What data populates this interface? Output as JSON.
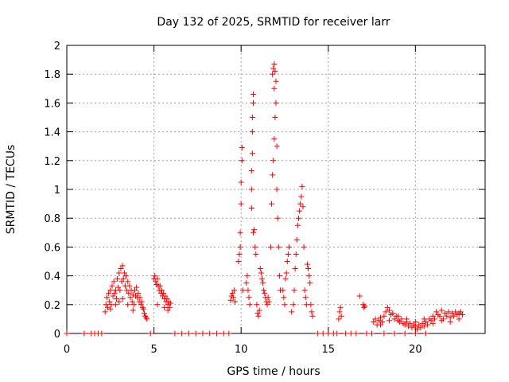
{
  "chart_data": {
    "type": "scatter",
    "title": "Day 132 of 2025, SRMTID for receiver larr",
    "xlabel": "GPS time / hours",
    "ylabel": "SRMTID / TECUs",
    "xlim": [
      0,
      24
    ],
    "ylim": [
      0,
      2
    ],
    "xticks": [
      0,
      5,
      10,
      15,
      20
    ],
    "yticks": [
      0,
      0.2,
      0.4,
      0.6,
      0.8,
      1,
      1.2,
      1.4,
      1.6,
      1.8,
      2
    ],
    "ytick_labels": [
      "0",
      "0.2",
      "0.4",
      "0.6",
      "0.8",
      "1",
      "1.2",
      "1.4",
      "1.6",
      "1.8",
      "2"
    ],
    "grid": true,
    "marker": "+",
    "color": "#ff0000",
    "series": [
      {
        "name": "SRMTID",
        "points": [
          [
            0.0,
            0
          ],
          [
            1.0,
            0
          ],
          [
            1.4,
            0
          ],
          [
            1.6,
            0
          ],
          [
            1.8,
            0
          ],
          [
            2.0,
            0
          ],
          [
            2.2,
            0.15
          ],
          [
            2.25,
            0.2
          ],
          [
            2.3,
            0.25
          ],
          [
            2.35,
            0.18
          ],
          [
            2.4,
            0.28
          ],
          [
            2.45,
            0.22
          ],
          [
            2.5,
            0.3
          ],
          [
            2.55,
            0.2
          ],
          [
            2.6,
            0.33
          ],
          [
            2.65,
            0.26
          ],
          [
            2.7,
            0.36
          ],
          [
            2.75,
            0.28
          ],
          [
            2.8,
            0.3
          ],
          [
            2.85,
            0.24
          ],
          [
            2.9,
            0.38
          ],
          [
            2.95,
            0.32
          ],
          [
            3.0,
            0.42
          ],
          [
            3.05,
            0.3
          ],
          [
            3.1,
            0.45
          ],
          [
            3.15,
            0.36
          ],
          [
            3.2,
            0.47
          ],
          [
            3.25,
            0.38
          ],
          [
            3.3,
            0.42
          ],
          [
            3.35,
            0.33
          ],
          [
            3.4,
            0.4
          ],
          [
            3.45,
            0.3
          ],
          [
            3.5,
            0.36
          ],
          [
            3.55,
            0.28
          ],
          [
            3.6,
            0.33
          ],
          [
            3.65,
            0.25
          ],
          [
            3.7,
            0.3
          ],
          [
            3.75,
            0.22
          ],
          [
            3.8,
            0.27
          ],
          [
            3.85,
            0.2
          ],
          [
            3.9,
            0.3
          ],
          [
            3.95,
            0.26
          ],
          [
            4.0,
            0.32
          ],
          [
            4.05,
            0.25
          ],
          [
            4.1,
            0.28
          ],
          [
            4.15,
            0.22
          ],
          [
            4.2,
            0.25
          ],
          [
            4.25,
            0.2
          ],
          [
            4.3,
            0.22
          ],
          [
            4.35,
            0.18
          ],
          [
            4.4,
            0.17
          ],
          [
            4.45,
            0.14
          ],
          [
            4.5,
            0.12
          ],
          [
            4.55,
            0.11
          ],
          [
            4.6,
            0.1
          ],
          [
            2.5,
            0.17
          ],
          [
            2.8,
            0.2
          ],
          [
            3.0,
            0.22
          ],
          [
            3.2,
            0.24
          ],
          [
            3.5,
            0.2
          ],
          [
            3.8,
            0.16
          ],
          [
            4.8,
            0
          ],
          [
            5.0,
            0.38
          ],
          [
            5.05,
            0.4
          ],
          [
            5.1,
            0.36
          ],
          [
            5.15,
            0.34
          ],
          [
            5.2,
            0.38
          ],
          [
            5.25,
            0.33
          ],
          [
            5.3,
            0.3
          ],
          [
            5.35,
            0.33
          ],
          [
            5.4,
            0.28
          ],
          [
            5.45,
            0.3
          ],
          [
            5.5,
            0.26
          ],
          [
            5.55,
            0.28
          ],
          [
            5.6,
            0.24
          ],
          [
            5.65,
            0.26
          ],
          [
            5.7,
            0.22
          ],
          [
            5.75,
            0.24
          ],
          [
            5.8,
            0.2
          ],
          [
            5.85,
            0.22
          ],
          [
            5.9,
            0.18
          ],
          [
            5.95,
            0.21
          ],
          [
            5.2,
            0.2
          ],
          [
            5.6,
            0.18
          ],
          [
            5.8,
            0.16
          ],
          [
            6.2,
            0
          ],
          [
            6.6,
            0
          ],
          [
            7.0,
            0
          ],
          [
            7.4,
            0
          ],
          [
            7.8,
            0
          ],
          [
            8.2,
            0
          ],
          [
            8.6,
            0
          ],
          [
            9.0,
            0
          ],
          [
            9.3,
            0
          ],
          [
            9.4,
            0.23
          ],
          [
            9.45,
            0.26
          ],
          [
            9.5,
            0.28
          ],
          [
            9.55,
            0.25
          ],
          [
            9.6,
            0.3
          ],
          [
            9.65,
            0.22
          ],
          [
            9.85,
            0.5
          ],
          [
            9.9,
            0.55
          ],
          [
            9.95,
            0.6
          ],
          [
            10.0,
            0.9
          ],
          [
            10.0,
            1.05
          ],
          [
            10.05,
            1.2
          ],
          [
            10.05,
            1.29
          ],
          [
            9.95,
            0.7
          ],
          [
            10.1,
            0.3
          ],
          [
            10.3,
            0.35
          ],
          [
            10.35,
            0.4
          ],
          [
            10.4,
            0.3
          ],
          [
            10.45,
            0.25
          ],
          [
            10.5,
            0.2
          ],
          [
            10.6,
            0.87
          ],
          [
            10.6,
            1.0
          ],
          [
            10.6,
            1.13
          ],
          [
            10.65,
            1.25
          ],
          [
            10.65,
            1.4
          ],
          [
            10.65,
            1.5
          ],
          [
            10.7,
            1.6
          ],
          [
            10.7,
            1.66
          ],
          [
            10.7,
            0.7
          ],
          [
            10.75,
            0.72
          ],
          [
            10.8,
            0.6
          ],
          [
            10.85,
            0.55
          ],
          [
            10.9,
            0.2
          ],
          [
            10.95,
            0.14
          ],
          [
            11.0,
            0.12
          ],
          [
            11.05,
            0.16
          ],
          [
            11.1,
            0.45
          ],
          [
            11.15,
            0.42
          ],
          [
            11.2,
            0.38
          ],
          [
            11.25,
            0.35
          ],
          [
            11.3,
            0.3
          ],
          [
            11.35,
            0.28
          ],
          [
            11.4,
            0.25
          ],
          [
            11.45,
            0.22
          ],
          [
            11.5,
            0.2
          ],
          [
            11.55,
            0.25
          ],
          [
            11.6,
            0.22
          ],
          [
            11.7,
            0.6
          ],
          [
            11.75,
            0.9
          ],
          [
            11.8,
            1.1
          ],
          [
            11.85,
            1.2
          ],
          [
            11.9,
            1.35
          ],
          [
            11.95,
            1.5
          ],
          [
            12.0,
            1.6
          ],
          [
            11.8,
            1.8
          ],
          [
            11.85,
            1.84
          ],
          [
            11.9,
            1.87
          ],
          [
            11.95,
            1.82
          ],
          [
            12.0,
            1.75
          ],
          [
            11.9,
            1.7
          ],
          [
            12.05,
            1.3
          ],
          [
            12.05,
            1.0
          ],
          [
            12.1,
            0.8
          ],
          [
            12.15,
            0.6
          ],
          [
            12.2,
            0.4
          ],
          [
            12.25,
            0.3
          ],
          [
            12.4,
            0.3
          ],
          [
            12.45,
            0.25
          ],
          [
            12.5,
            0.2
          ],
          [
            12.55,
            0.38
          ],
          [
            12.6,
            0.42
          ],
          [
            12.65,
            0.5
          ],
          [
            12.7,
            0.55
          ],
          [
            12.75,
            0.6
          ],
          [
            12.9,
            0.15
          ],
          [
            13.0,
            0.2
          ],
          [
            13.05,
            0.3
          ],
          [
            13.1,
            0.45
          ],
          [
            13.15,
            0.55
          ],
          [
            13.2,
            0.65
          ],
          [
            13.25,
            0.75
          ],
          [
            13.3,
            0.8
          ],
          [
            13.35,
            0.85
          ],
          [
            13.4,
            0.9
          ],
          [
            13.45,
            0.95
          ],
          [
            13.5,
            1.02
          ],
          [
            13.55,
            0.88
          ],
          [
            13.6,
            0.6
          ],
          [
            13.65,
            0.3
          ],
          [
            13.7,
            0.25
          ],
          [
            13.75,
            0.2
          ],
          [
            13.8,
            0.48
          ],
          [
            13.85,
            0.45
          ],
          [
            13.9,
            0.4
          ],
          [
            13.95,
            0.35
          ],
          [
            14.0,
            0.2
          ],
          [
            14.05,
            0.15
          ],
          [
            14.1,
            0.12
          ],
          [
            14.4,
            0
          ],
          [
            14.7,
            0
          ],
          [
            15.0,
            0
          ],
          [
            15.3,
            0
          ],
          [
            15.5,
            0
          ],
          [
            15.6,
            0.1
          ],
          [
            15.65,
            0.15
          ],
          [
            15.7,
            0.18
          ],
          [
            15.75,
            0.12
          ],
          [
            16.0,
            0
          ],
          [
            16.3,
            0
          ],
          [
            16.6,
            0
          ],
          [
            16.8,
            0.26
          ],
          [
            17.0,
            0.2
          ],
          [
            17.05,
            0.18
          ],
          [
            17.1,
            0.19
          ],
          [
            17.2,
            0
          ],
          [
            17.5,
            0
          ],
          [
            17.6,
            0.08
          ],
          [
            17.7,
            0.1
          ],
          [
            17.8,
            0.06
          ],
          [
            17.9,
            0.09
          ],
          [
            18.0,
            0.11
          ],
          [
            18.1,
            0.08
          ],
          [
            18.2,
            0.12
          ],
          [
            18.3,
            0.15
          ],
          [
            18.4,
            0.18
          ],
          [
            18.5,
            0.16
          ],
          [
            18.6,
            0.13
          ],
          [
            18.7,
            0.14
          ],
          [
            18.8,
            0.1
          ],
          [
            18.9,
            0.12
          ],
          [
            19.0,
            0.09
          ],
          [
            19.1,
            0.08
          ],
          [
            19.2,
            0.1
          ],
          [
            19.3,
            0.07
          ],
          [
            19.4,
            0.06
          ],
          [
            19.5,
            0.08
          ],
          [
            19.6,
            0.05
          ],
          [
            19.7,
            0.07
          ],
          [
            19.8,
            0.04
          ],
          [
            19.9,
            0.06
          ],
          [
            20.0,
            0.05
          ],
          [
            20.1,
            0.03
          ],
          [
            20.2,
            0.06
          ],
          [
            20.3,
            0.04
          ],
          [
            20.4,
            0.07
          ],
          [
            20.5,
            0.05
          ],
          [
            20.6,
            0.08
          ],
          [
            20.7,
            0.06
          ],
          [
            20.8,
            0.1
          ],
          [
            20.9,
            0.09
          ],
          [
            21.0,
            0.12
          ],
          [
            21.1,
            0.1
          ],
          [
            21.2,
            0.15
          ],
          [
            21.3,
            0.13
          ],
          [
            21.4,
            0.12
          ],
          [
            21.5,
            0.16
          ],
          [
            21.6,
            0.1
          ],
          [
            21.7,
            0.14
          ],
          [
            21.8,
            0.12
          ],
          [
            21.9,
            0.15
          ],
          [
            22.0,
            0.11
          ],
          [
            22.1,
            0.14
          ],
          [
            22.2,
            0.12
          ],
          [
            22.3,
            0.15
          ],
          [
            22.4,
            0.13
          ],
          [
            22.5,
            0.14
          ],
          [
            22.6,
            0.15
          ],
          [
            22.7,
            0.13
          ],
          [
            18.0,
            0.06
          ],
          [
            18.5,
            0.09
          ],
          [
            19.0,
            0.12
          ],
          [
            19.5,
            0.1
          ],
          [
            20.0,
            0.08
          ],
          [
            20.5,
            0.1
          ],
          [
            21.0,
            0.07
          ],
          [
            21.5,
            0.09
          ],
          [
            22.0,
            0.08
          ],
          [
            22.5,
            0.1
          ],
          [
            18.2,
            0
          ],
          [
            18.8,
            0
          ],
          [
            19.4,
            0
          ],
          [
            20.0,
            0
          ],
          [
            20.6,
            0
          ]
        ]
      }
    ]
  }
}
